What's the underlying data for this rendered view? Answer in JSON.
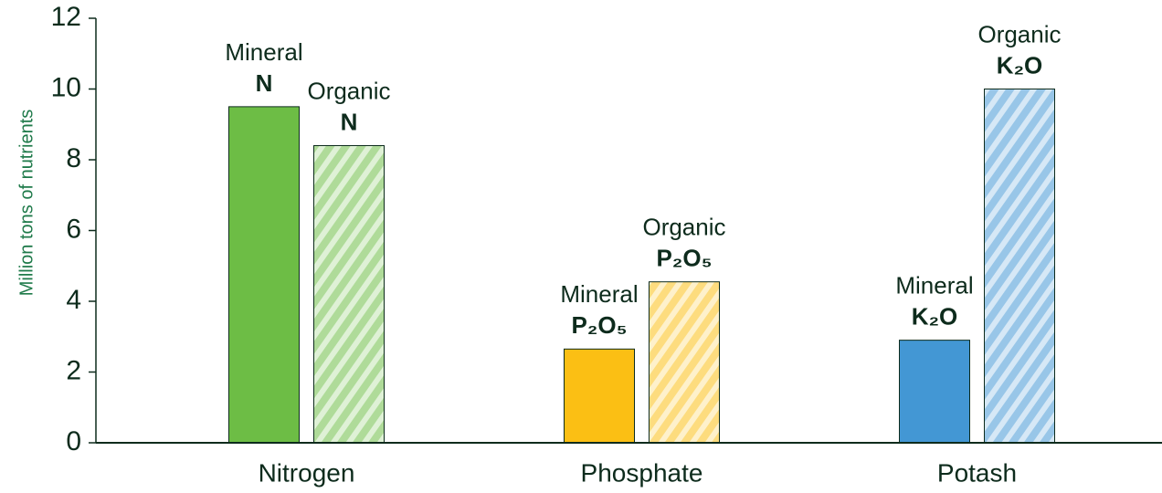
{
  "chart_data": {
    "type": "bar",
    "y_label": "Million tons of nutrients",
    "categories": [
      "Nitrogen",
      "Phosphate",
      "Potash"
    ],
    "colors": [
      "#6dbd45",
      "#fbbf14",
      "#4397d4"
    ],
    "series": [
      {
        "name": "Mineral",
        "values": [
          9.5,
          2.65,
          2.9
        ],
        "formulas": [
          "N",
          "P₂O₅",
          "K₂O"
        ],
        "hatch": false
      },
      {
        "name": "Organic",
        "values": [
          8.4,
          4.55,
          10.0
        ],
        "formulas": [
          "N",
          "P₂O₅",
          "K₂O"
        ],
        "hatch": true
      }
    ],
    "ylim": [
      0,
      12
    ],
    "yticks": [
      0,
      2,
      4,
      6,
      8,
      10,
      12
    ],
    "grid": false
  }
}
